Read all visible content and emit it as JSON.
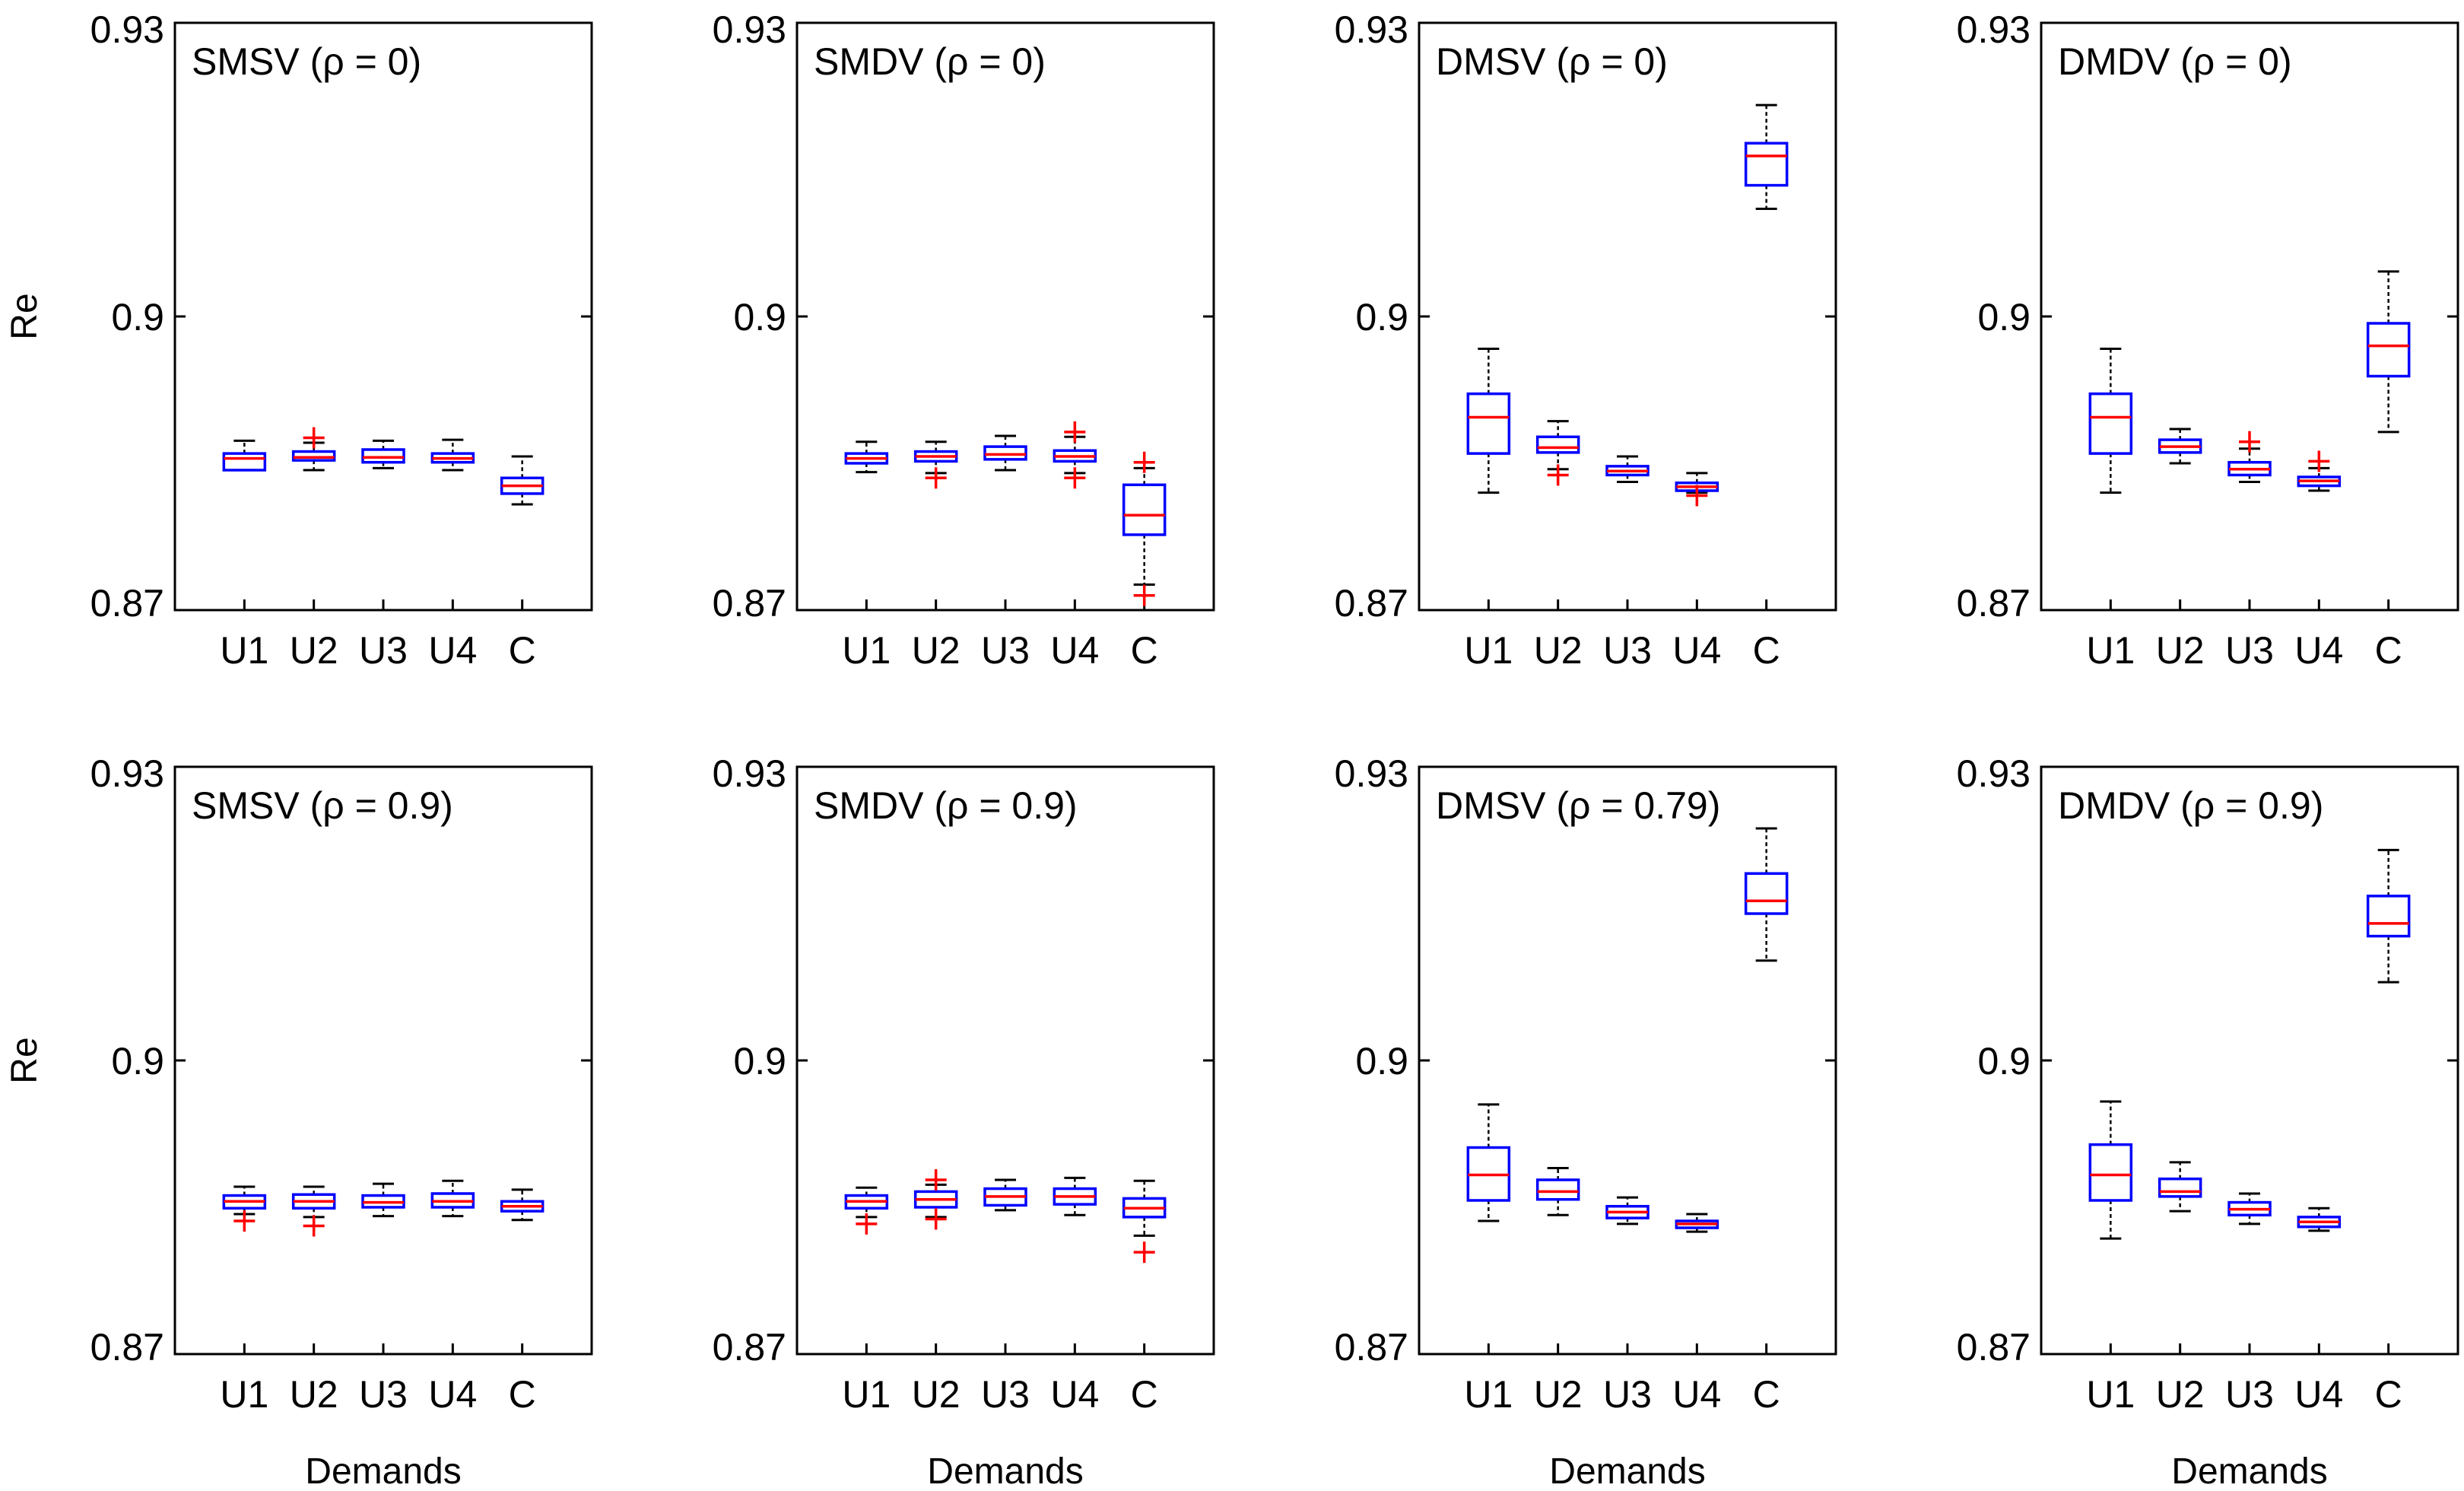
{
  "colors": {
    "box": "#0000ff",
    "median": "#ff0000",
    "outlier": "#ff0000",
    "whisker": "#000000",
    "frame": "#000000"
  },
  "chart_data": {
    "type": "box",
    "ylim": [
      0.87,
      0.93
    ],
    "yticks": [
      "0.87",
      "0.9",
      "0.93"
    ],
    "ylabel": "Re",
    "xlabel": "Demands",
    "categories": [
      "U1",
      "U2",
      "U3",
      "U4",
      "C"
    ],
    "panels": [
      {
        "title": "SMSV (ρ = 0)",
        "boxes": [
          {
            "wl": 0.8843,
            "q1": 0.8843,
            "med": 0.8855,
            "q3": 0.886,
            "wh": 0.8873,
            "out": []
          },
          {
            "wl": 0.8843,
            "q1": 0.8853,
            "med": 0.8856,
            "q3": 0.8862,
            "wh": 0.8871,
            "out": [
              0.8876
            ]
          },
          {
            "wl": 0.8845,
            "q1": 0.8851,
            "med": 0.8856,
            "q3": 0.8864,
            "wh": 0.8873,
            "out": []
          },
          {
            "wl": 0.8843,
            "q1": 0.8851,
            "med": 0.8855,
            "q3": 0.886,
            "wh": 0.8874,
            "out": []
          },
          {
            "wl": 0.8808,
            "q1": 0.8819,
            "med": 0.8827,
            "q3": 0.8835,
            "wh": 0.8857,
            "out": []
          }
        ]
      },
      {
        "title": "SMDV (ρ = 0)",
        "boxes": [
          {
            "wl": 0.8841,
            "q1": 0.885,
            "med": 0.8855,
            "q3": 0.886,
            "wh": 0.8872,
            "out": []
          },
          {
            "wl": 0.884,
            "q1": 0.8852,
            "med": 0.8857,
            "q3": 0.8862,
            "wh": 0.8872,
            "out": [
              0.8835
            ]
          },
          {
            "wl": 0.8843,
            "q1": 0.8854,
            "med": 0.8859,
            "q3": 0.8867,
            "wh": 0.8878,
            "out": []
          },
          {
            "wl": 0.884,
            "q1": 0.8852,
            "med": 0.8857,
            "q3": 0.8863,
            "wh": 0.8877,
            "out": [
              0.8835,
              0.8882
            ]
          },
          {
            "wl": 0.8726,
            "q1": 0.8777,
            "med": 0.8797,
            "q3": 0.8828,
            "wh": 0.8845,
            "out": [
              0.8715,
              0.8851
            ]
          }
        ]
      },
      {
        "title": "DMSV (ρ = 0)",
        "boxes": [
          {
            "wl": 0.882,
            "q1": 0.886,
            "med": 0.8897,
            "q3": 0.8921,
            "wh": 0.8967,
            "out": []
          },
          {
            "wl": 0.8844,
            "q1": 0.8861,
            "med": 0.8866,
            "q3": 0.8877,
            "wh": 0.8893,
            "out": [
              0.8838
            ]
          },
          {
            "wl": 0.8831,
            "q1": 0.8838,
            "med": 0.8842,
            "q3": 0.8847,
            "wh": 0.8857,
            "out": []
          },
          {
            "wl": 0.882,
            "q1": 0.8822,
            "med": 0.8826,
            "q3": 0.883,
            "wh": 0.884,
            "out": [
              0.8817
            ]
          },
          {
            "wl": 0.911,
            "q1": 0.9134,
            "med": 0.9164,
            "q3": 0.9177,
            "wh": 0.9216,
            "out": []
          }
        ]
      },
      {
        "title": "DMDV (ρ = 0)",
        "boxes": [
          {
            "wl": 0.882,
            "q1": 0.886,
            "med": 0.8897,
            "q3": 0.8921,
            "wh": 0.8967,
            "out": []
          },
          {
            "wl": 0.885,
            "q1": 0.8861,
            "med": 0.8867,
            "q3": 0.8874,
            "wh": 0.8885,
            "out": []
          },
          {
            "wl": 0.8831,
            "q1": 0.8838,
            "med": 0.8844,
            "q3": 0.8851,
            "wh": 0.8865,
            "out": [
              0.8872
            ]
          },
          {
            "wl": 0.8822,
            "q1": 0.8827,
            "med": 0.8832,
            "q3": 0.8836,
            "wh": 0.8845,
            "out": [
              0.8852
            ]
          },
          {
            "wl": 0.8882,
            "q1": 0.8939,
            "med": 0.897,
            "q3": 0.8993,
            "wh": 0.9046,
            "out": []
          }
        ]
      },
      {
        "title": "SMSV (ρ = 0.9)",
        "boxes": [
          {
            "wl": 0.8843,
            "q1": 0.8849,
            "med": 0.8856,
            "q3": 0.8862,
            "wh": 0.8871,
            "out": [
              0.8836
            ]
          },
          {
            "wl": 0.884,
            "q1": 0.8849,
            "med": 0.8856,
            "q3": 0.8863,
            "wh": 0.8871,
            "out": [
              0.8831
            ]
          },
          {
            "wl": 0.8841,
            "q1": 0.885,
            "med": 0.8855,
            "q3": 0.8862,
            "wh": 0.8874,
            "out": []
          },
          {
            "wl": 0.8841,
            "q1": 0.885,
            "med": 0.8856,
            "q3": 0.8864,
            "wh": 0.8877,
            "out": []
          },
          {
            "wl": 0.8837,
            "q1": 0.8846,
            "med": 0.8851,
            "q3": 0.8856,
            "wh": 0.8868,
            "out": []
          }
        ]
      },
      {
        "title": "SMDV (ρ = 0.9)",
        "boxes": [
          {
            "wl": 0.884,
            "q1": 0.8849,
            "med": 0.8856,
            "q3": 0.8862,
            "wh": 0.887,
            "out": [
              0.8833
            ]
          },
          {
            "wl": 0.884,
            "q1": 0.885,
            "med": 0.8858,
            "q3": 0.8866,
            "wh": 0.8873,
            "out": [
              0.8838,
              0.8878
            ]
          },
          {
            "wl": 0.8847,
            "q1": 0.8852,
            "med": 0.8861,
            "q3": 0.8869,
            "wh": 0.8878,
            "out": []
          },
          {
            "wl": 0.8842,
            "q1": 0.8853,
            "med": 0.8861,
            "q3": 0.8869,
            "wh": 0.888,
            "out": []
          },
          {
            "wl": 0.8821,
            "q1": 0.884,
            "med": 0.8849,
            "q3": 0.8859,
            "wh": 0.8877,
            "out": [
              0.8804
            ]
          }
        ]
      },
      {
        "title": "DMSV (ρ = 0.79)",
        "boxes": [
          {
            "wl": 0.8836,
            "q1": 0.8857,
            "med": 0.8883,
            "q3": 0.8911,
            "wh": 0.8955,
            "out": []
          },
          {
            "wl": 0.8842,
            "q1": 0.8858,
            "med": 0.8866,
            "q3": 0.8878,
            "wh": 0.889,
            "out": []
          },
          {
            "wl": 0.8833,
            "q1": 0.8839,
            "med": 0.8845,
            "q3": 0.8851,
            "wh": 0.886,
            "out": []
          },
          {
            "wl": 0.8825,
            "q1": 0.8829,
            "med": 0.8833,
            "q3": 0.8836,
            "wh": 0.8843,
            "out": []
          },
          {
            "wl": 0.9102,
            "q1": 0.915,
            "med": 0.9163,
            "q3": 0.9191,
            "wh": 0.9237,
            "out": []
          }
        ]
      },
      {
        "title": "DMDV (ρ = 0.9)",
        "boxes": [
          {
            "wl": 0.8818,
            "q1": 0.8857,
            "med": 0.8883,
            "q3": 0.8914,
            "wh": 0.8958,
            "out": []
          },
          {
            "wl": 0.8846,
            "q1": 0.8861,
            "med": 0.8866,
            "q3": 0.8879,
            "wh": 0.8896,
            "out": []
          },
          {
            "wl": 0.8833,
            "q1": 0.8842,
            "med": 0.8848,
            "q3": 0.8855,
            "wh": 0.8864,
            "out": []
          },
          {
            "wl": 0.8826,
            "q1": 0.883,
            "med": 0.8835,
            "q3": 0.884,
            "wh": 0.8849,
            "out": []
          },
          {
            "wl": 0.908,
            "q1": 0.9127,
            "med": 0.914,
            "q3": 0.9168,
            "wh": 0.9215,
            "out": []
          }
        ]
      }
    ]
  }
}
